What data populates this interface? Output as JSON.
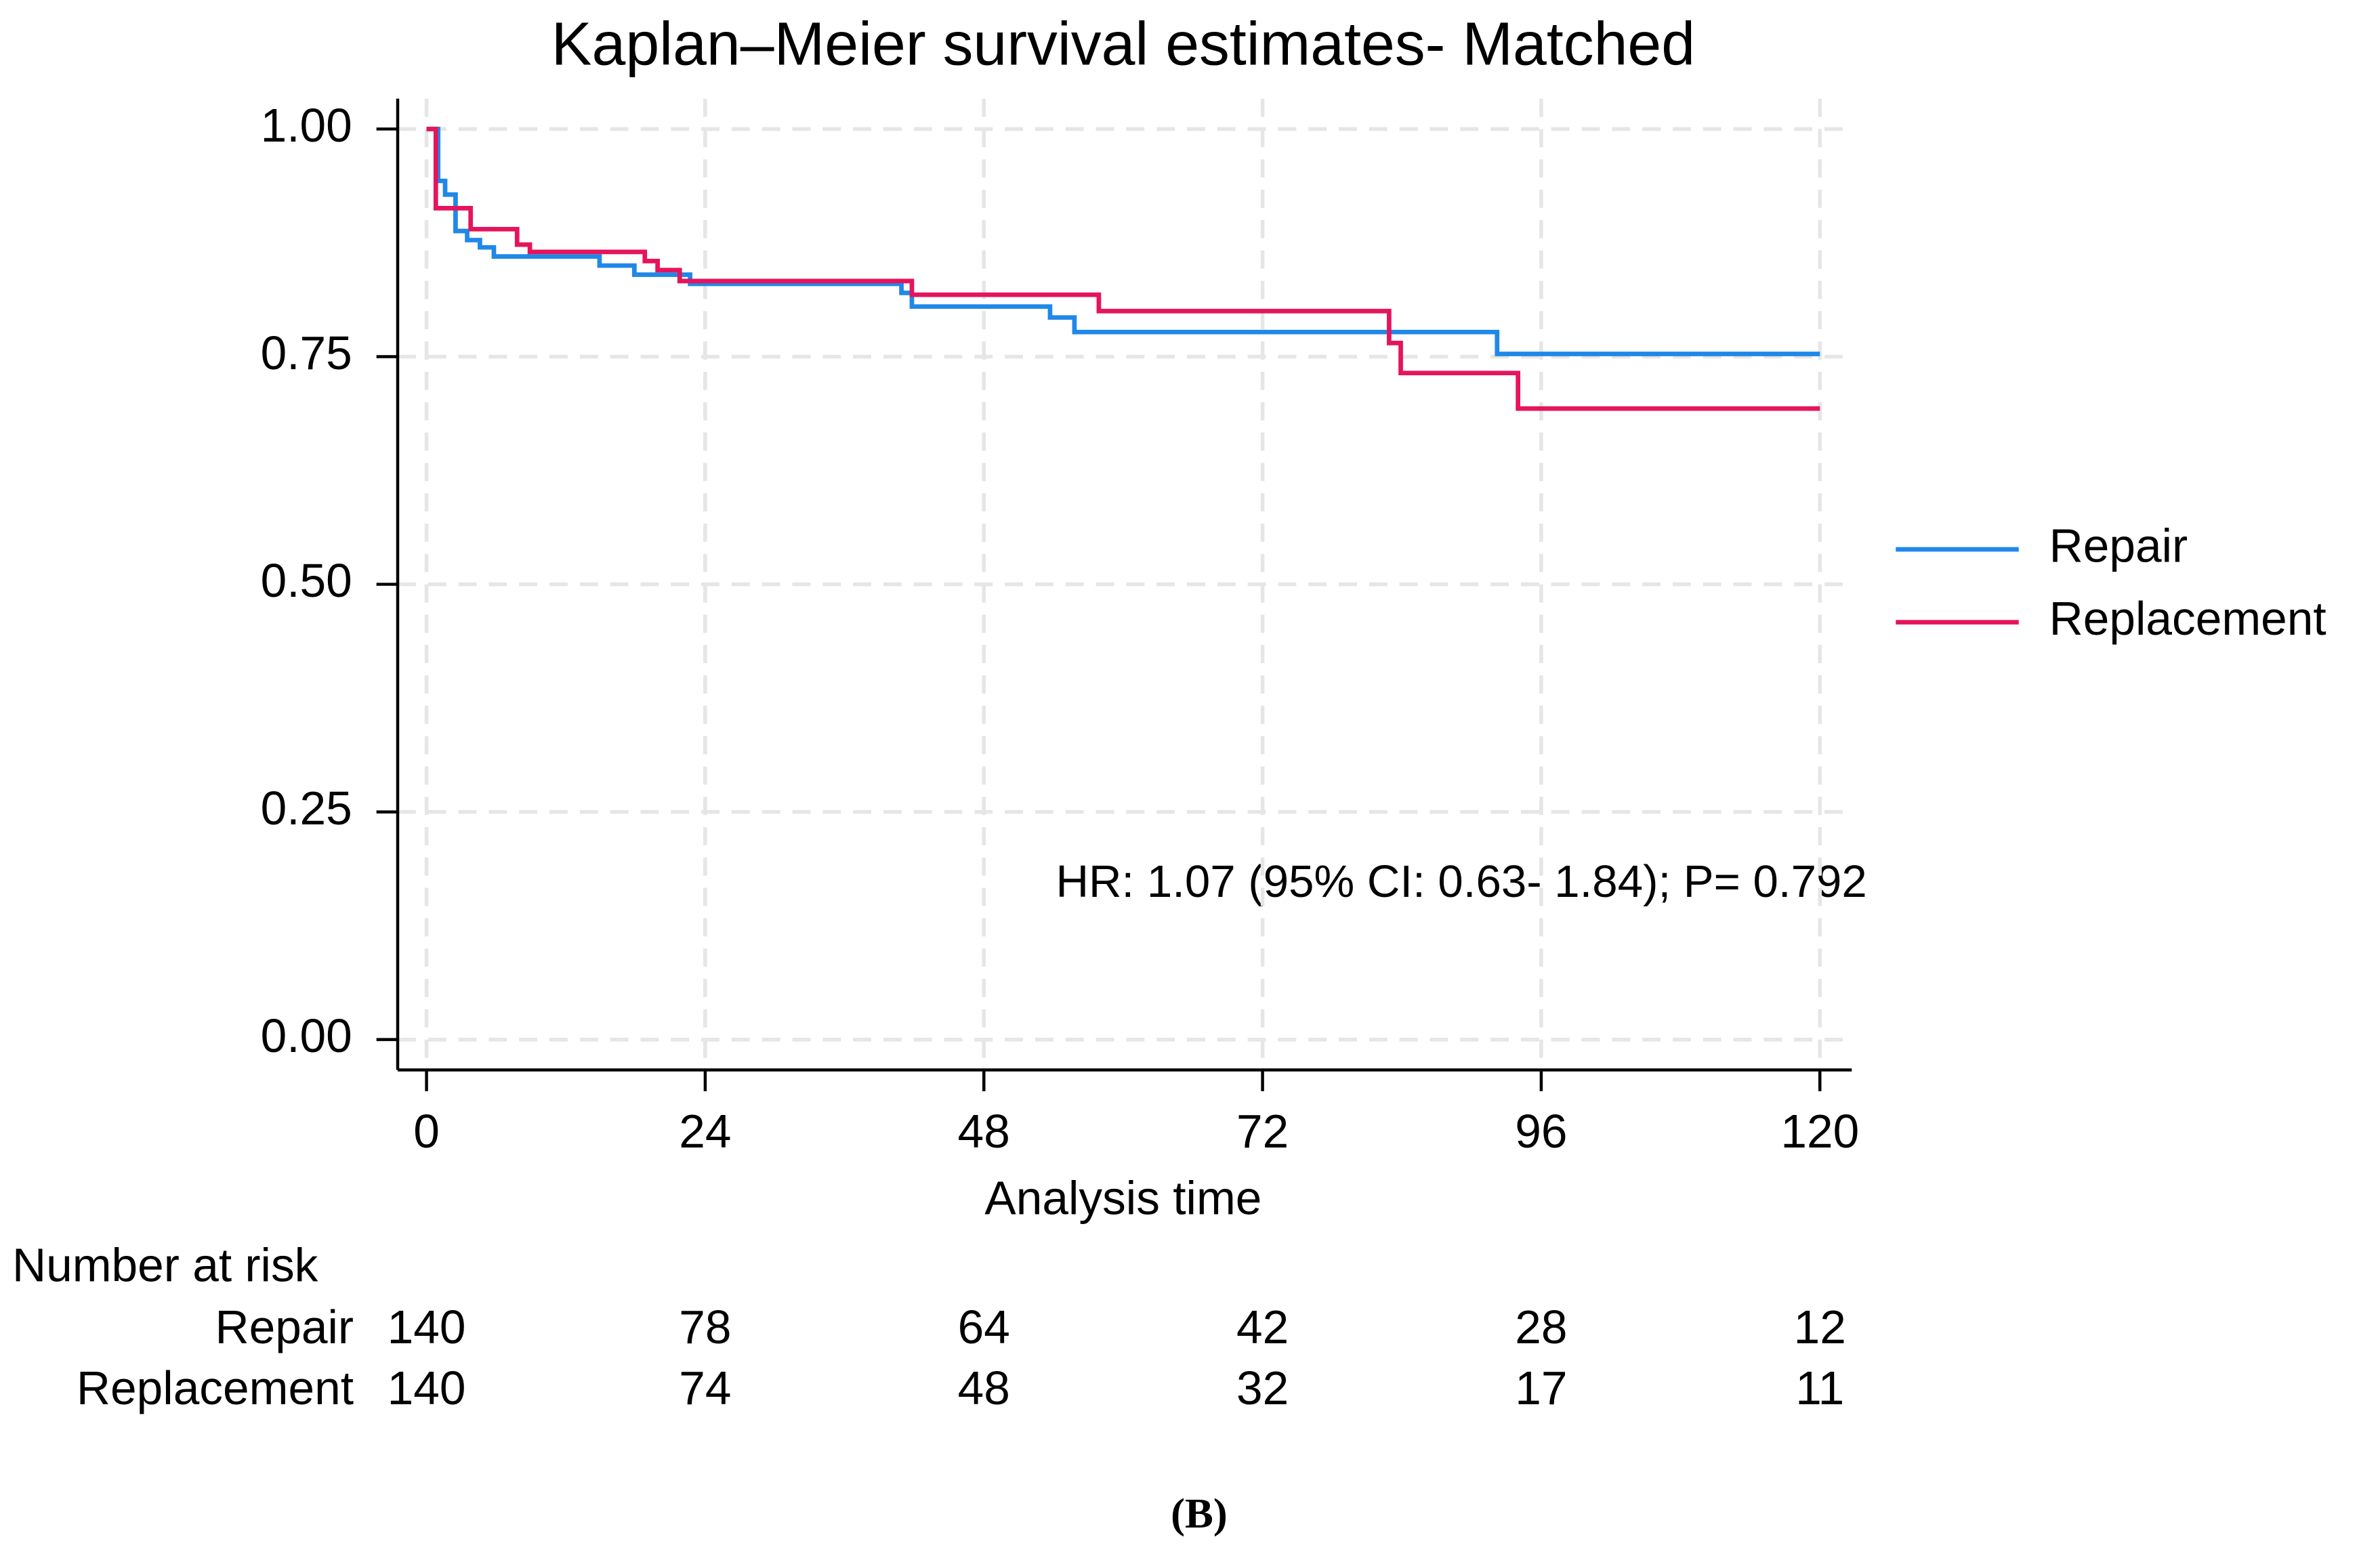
{
  "chart_data": {
    "type": "line",
    "step": "post",
    "title": "Kaplan–Meier survival estimates- Matched",
    "xlabel": "Analysis time",
    "xlim": [
      0,
      120
    ],
    "xticks": [
      0,
      24,
      48,
      72,
      96,
      120
    ],
    "ylim": [
      0,
      1
    ],
    "yticks": [
      {
        "value": 0,
        "label": "0.00"
      },
      {
        "value": 0.25,
        "label": "0.25"
      },
      {
        "value": 0.5,
        "label": "0.50"
      },
      {
        "value": 0.75,
        "label": "0.75"
      },
      {
        "value": 1,
        "label": "1.00"
      }
    ],
    "grid": true,
    "legend": "right",
    "series": [
      {
        "name": "Repair",
        "color": "#1f88e8",
        "x": [
          0,
          1,
          1.6,
          2.5,
          3.5,
          4.6,
          5.8,
          14.9,
          17.9,
          22.7,
          40.9,
          41.8,
          53.7,
          55.8,
          92.2,
          120
        ],
        "values": [
          1.0,
          0.943,
          0.928,
          0.888,
          0.878,
          0.87,
          0.86,
          0.85,
          0.84,
          0.83,
          0.82,
          0.805,
          0.793,
          0.777,
          0.753,
          0.753
        ]
      },
      {
        "name": "Replacement",
        "color": "#e5145c",
        "x": [
          0,
          0.8,
          3.8,
          7.8,
          8.9,
          18.8,
          19.9,
          21.8,
          41.8,
          57.9,
          82.9,
          83.9,
          94,
          120
        ],
        "values": [
          1.0,
          0.913,
          0.89,
          0.873,
          0.865,
          0.855,
          0.845,
          0.833,
          0.818,
          0.8,
          0.765,
          0.732,
          0.693,
          0.693
        ]
      }
    ],
    "annotation": "HR: 1.07 (95% CI: 0.63- 1.84); P= 0.792",
    "risk_table": {
      "title": "Number at risk",
      "rows": [
        {
          "name": "Repair",
          "values": [
            140,
            78,
            64,
            42,
            28,
            12
          ]
        },
        {
          "name": "Replacement",
          "values": [
            140,
            74,
            48,
            32,
            17,
            11
          ]
        }
      ]
    },
    "caption": "(B)"
  }
}
